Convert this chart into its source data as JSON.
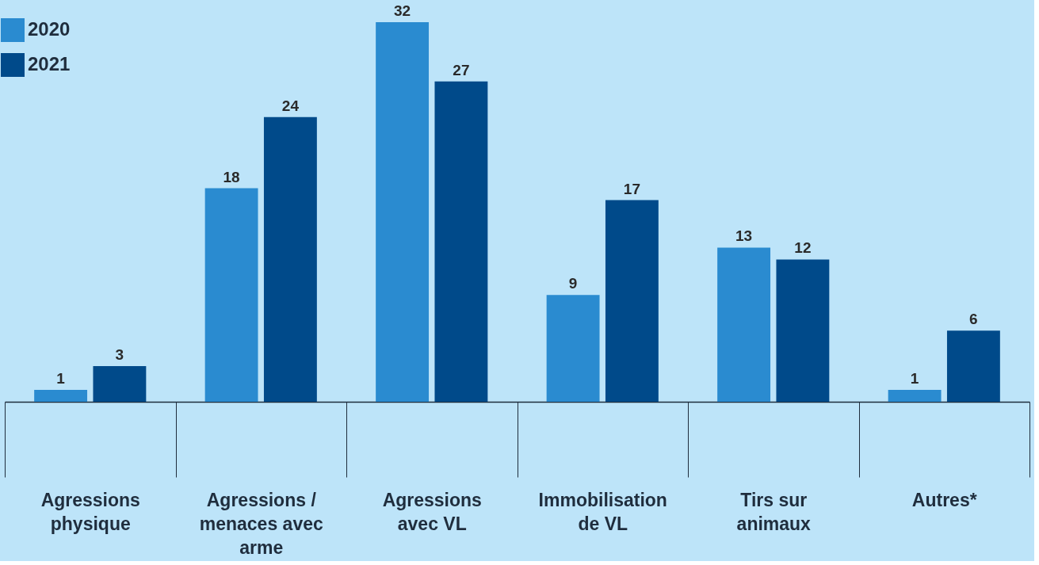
{
  "chart_data": {
    "type": "bar",
    "categories": [
      "Agressions physique",
      "Agressions / menaces avec arme",
      "Agressions avec VL",
      "Immobilisation de VL",
      "Tirs sur animaux",
      "Autres*"
    ],
    "series": [
      {
        "name": "2020",
        "color": "#2a8bd0",
        "values": [
          1,
          18,
          32,
          9,
          13,
          1
        ]
      },
      {
        "name": "2021",
        "color": "#004a8a",
        "values": [
          3,
          24,
          27,
          17,
          12,
          6
        ]
      }
    ],
    "data_labels": true,
    "legend": "top left",
    "grid": false
  }
}
